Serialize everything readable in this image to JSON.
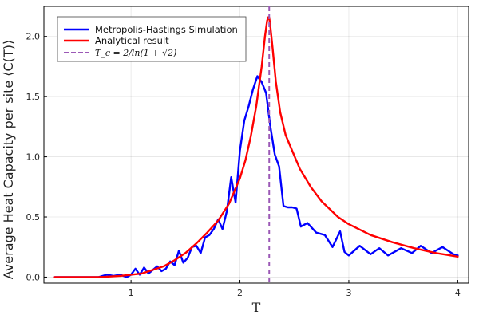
{
  "chart_data": {
    "type": "line",
    "xlabel": "T",
    "ylabel": "Average Heat Capacity per site ⟨C(T)⟩",
    "xlim": [
      0.2,
      4.1
    ],
    "ylim": [
      -0.05,
      2.25
    ],
    "xticks": [
      1,
      2,
      3,
      4
    ],
    "yticks": [
      0.0,
      0.5,
      1.0,
      1.5,
      2.0
    ],
    "xtick_labels": [
      "1",
      "2",
      "3",
      "4"
    ],
    "ytick_labels": [
      "0.0",
      "0.5",
      "1.0",
      "1.5",
      "2.0"
    ],
    "grid": true,
    "legend_position": "top-left",
    "vline": {
      "x": 2.269,
      "label": "T_c = 2/ln(1 + √2)",
      "color": "#9b59b6"
    },
    "series": [
      {
        "name": "Metropolis-Hastings Simulation",
        "color": "#0000ff",
        "x": [
          0.3,
          0.38,
          0.46,
          0.54,
          0.62,
          0.7,
          0.78,
          0.84,
          0.9,
          0.96,
          1.0,
          1.04,
          1.08,
          1.12,
          1.16,
          1.2,
          1.24,
          1.28,
          1.32,
          1.36,
          1.4,
          1.44,
          1.48,
          1.52,
          1.56,
          1.6,
          1.64,
          1.68,
          1.72,
          1.76,
          1.8,
          1.84,
          1.88,
          1.92,
          1.96,
          2.0,
          2.04,
          2.08,
          2.12,
          2.16,
          2.2,
          2.24,
          2.28,
          2.32,
          2.36,
          2.4,
          2.44,
          2.48,
          2.52,
          2.56,
          2.62,
          2.7,
          2.78,
          2.85,
          2.92,
          2.96,
          3.0,
          3.1,
          3.2,
          3.28,
          3.36,
          3.48,
          3.58,
          3.66,
          3.76,
          3.86,
          3.96,
          4.0
        ],
        "y": [
          0.0,
          0.0,
          0.0,
          0.0,
          0.0,
          0.0,
          0.02,
          0.01,
          0.02,
          0.0,
          0.02,
          0.07,
          0.02,
          0.08,
          0.03,
          0.06,
          0.09,
          0.05,
          0.07,
          0.13,
          0.1,
          0.22,
          0.12,
          0.16,
          0.25,
          0.26,
          0.2,
          0.33,
          0.35,
          0.4,
          0.48,
          0.4,
          0.55,
          0.83,
          0.62,
          1.05,
          1.3,
          1.42,
          1.56,
          1.67,
          1.62,
          1.53,
          1.25,
          1.02,
          0.92,
          0.59,
          0.58,
          0.58,
          0.57,
          0.42,
          0.45,
          0.37,
          0.35,
          0.25,
          0.38,
          0.21,
          0.18,
          0.26,
          0.19,
          0.24,
          0.18,
          0.24,
          0.2,
          0.26,
          0.2,
          0.25,
          0.19,
          0.18
        ]
      },
      {
        "name": "Analytical result",
        "color": "#ff0000",
        "x": [
          0.3,
          0.5,
          0.7,
          0.9,
          1.0,
          1.1,
          1.2,
          1.3,
          1.4,
          1.5,
          1.6,
          1.7,
          1.8,
          1.9,
          2.0,
          2.05,
          2.1,
          2.15,
          2.2,
          2.23,
          2.25,
          2.26,
          2.269,
          2.28,
          2.3,
          2.33,
          2.37,
          2.42,
          2.48,
          2.55,
          2.65,
          2.75,
          2.9,
          3.0,
          3.2,
          3.4,
          3.6,
          3.8,
          4.0
        ],
        "y": [
          0.0,
          0.0,
          0.0,
          0.01,
          0.02,
          0.03,
          0.06,
          0.09,
          0.14,
          0.2,
          0.28,
          0.37,
          0.47,
          0.61,
          0.82,
          0.97,
          1.17,
          1.42,
          1.75,
          2.0,
          2.13,
          2.16,
          2.16,
          2.08,
          1.9,
          1.62,
          1.37,
          1.18,
          1.05,
          0.9,
          0.75,
          0.63,
          0.5,
          0.44,
          0.35,
          0.29,
          0.24,
          0.2,
          0.17
        ]
      }
    ]
  }
}
